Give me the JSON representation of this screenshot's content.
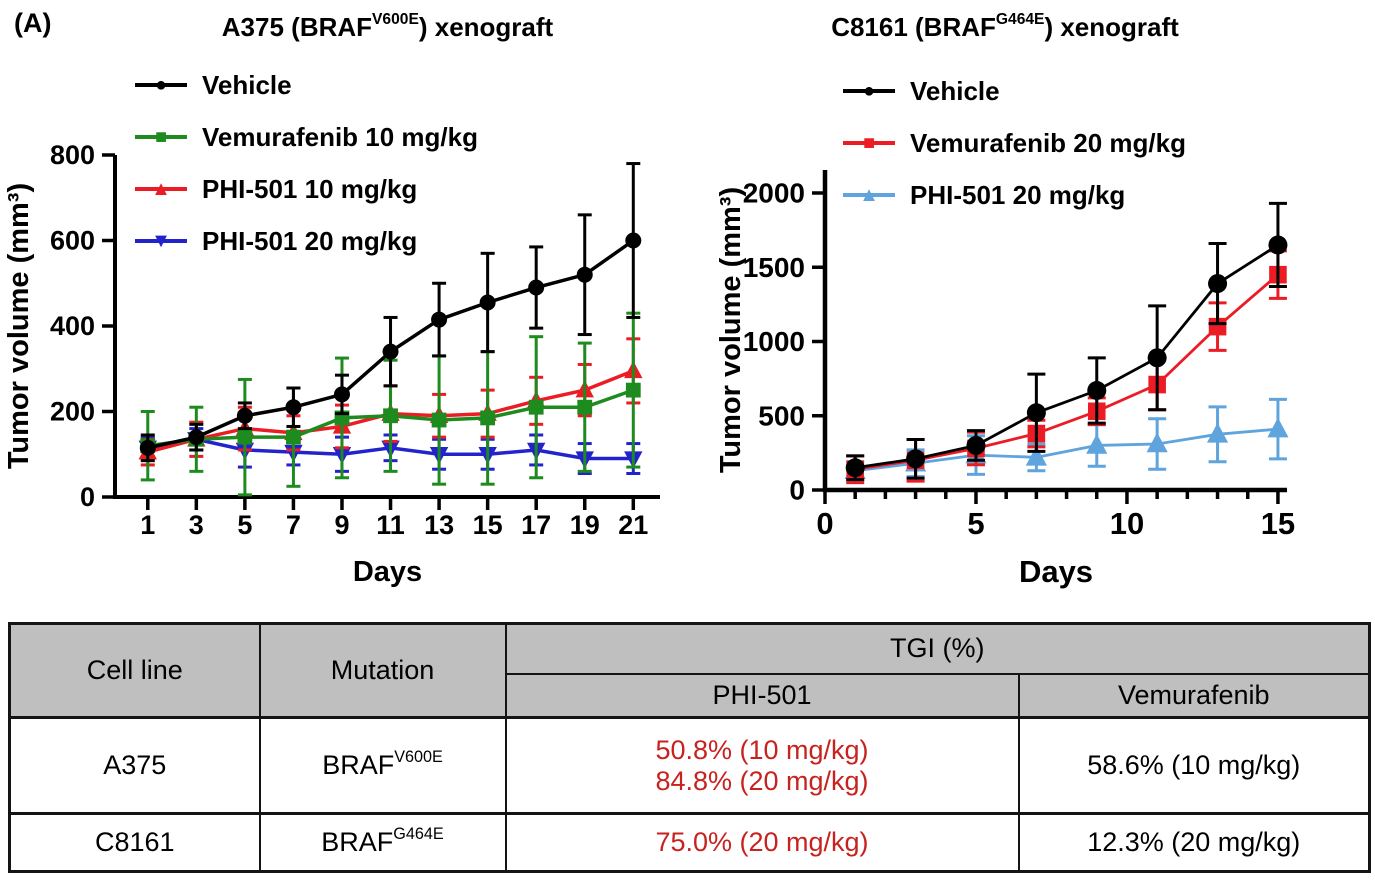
{
  "panel_label": "(A)",
  "chart_data": [
    {
      "type": "line",
      "title": {
        "pre": "A375 (BRAF",
        "sup": "V600E",
        "post": ") xenograft"
      },
      "xlabel": "Days",
      "ylabel": "Tumor volume (mm³)",
      "xlim": [
        -0.35,
        22.1
      ],
      "ylim": [
        0,
        800
      ],
      "x_ticks": [
        1,
        3,
        5,
        7,
        9,
        11,
        13,
        15,
        17,
        19,
        21
      ],
      "y_ticks": [
        0,
        200,
        400,
        600,
        800
      ],
      "grid": "off",
      "legend_position": "top-left",
      "x": [
        1,
        3,
        5,
        7,
        9,
        11,
        13,
        15,
        17,
        19,
        21
      ],
      "series": [
        {
          "name": "Vehicle",
          "marker": "circle",
          "color": "#000000",
          "values": [
            115,
            140,
            190,
            210,
            240,
            340,
            415,
            455,
            490,
            520,
            600
          ],
          "errors": [
            30,
            30,
            30,
            45,
            45,
            80,
            85,
            115,
            95,
            140,
            180
          ]
        },
        {
          "name": "Vemurafenib 10 mg/kg",
          "marker": "square",
          "color": "#1E8B1E",
          "values": [
            120,
            135,
            140,
            140,
            185,
            190,
            180,
            185,
            210,
            210,
            250
          ],
          "errors": [
            80,
            75,
            135,
            115,
            140,
            130,
            150,
            155,
            165,
            150,
            180
          ]
        },
        {
          "name": "PHI-501 10 mg/kg",
          "marker": "triangle-up",
          "color": "#EC1C24",
          "values": [
            105,
            135,
            160,
            150,
            165,
            195,
            190,
            195,
            225,
            250,
            295
          ],
          "errors": [
            30,
            40,
            50,
            40,
            50,
            65,
            50,
            55,
            55,
            60,
            75
          ]
        },
        {
          "name": "PHI-501 20 mg/kg",
          "marker": "triangle-down",
          "color": "#2323CC",
          "values": [
            115,
            135,
            110,
            105,
            100,
            115,
            100,
            100,
            110,
            90,
            90
          ],
          "errors": [
            25,
            25,
            40,
            30,
            40,
            30,
            35,
            35,
            35,
            35,
            35
          ]
        }
      ]
    },
    {
      "type": "line",
      "title": {
        "pre": "C8161 (BRAF",
        "sup": "G464E",
        "post": ") xenograft"
      },
      "xlabel": "Days",
      "ylabel": "Tumor volume (mm³)",
      "xlim": [
        0,
        15.3
      ],
      "ylim": [
        0,
        2000
      ],
      "x_ticks": [
        0,
        5,
        10,
        15
      ],
      "x_minor_step": 1,
      "y_ticks": [
        0,
        500,
        1000,
        1500,
        2000
      ],
      "grid": "off",
      "legend_position": "top-left",
      "x": [
        1,
        3,
        5,
        7,
        9,
        11,
        13,
        15
      ],
      "series": [
        {
          "name": "Vehicle",
          "marker": "circle",
          "color": "#000000",
          "values": [
            150,
            210,
            300,
            520,
            670,
            890,
            1390,
            1650
          ],
          "errors": [
            80,
            130,
            100,
            260,
            220,
            350,
            270,
            280
          ]
        },
        {
          "name": "Vemurafenib 20 mg/kg",
          "marker": "square",
          "color": "#EC1C24",
          "values": [
            140,
            200,
            280,
            380,
            530,
            710,
            1100,
            1450
          ],
          "errors": [
            90,
            140,
            110,
            90,
            90,
            170,
            160,
            160
          ]
        },
        {
          "name": "PHI-501 20 mg/kg",
          "marker": "triangle-up",
          "color": "#5FA4DC",
          "values": [
            130,
            180,
            235,
            220,
            300,
            310,
            375,
            410
          ],
          "errors": [
            60,
            90,
            130,
            90,
            140,
            170,
            185,
            200
          ]
        }
      ]
    }
  ],
  "table": {
    "header_bg": "#BFBFBF",
    "red_text_color": "#C8221F",
    "headers": {
      "cell_line": "Cell line",
      "mutation": "Mutation",
      "tgi": "TGI (%)",
      "phi": "PHI-501",
      "vem": "Vemurafenib"
    },
    "rows": [
      {
        "cell_line": "A375",
        "mutation": {
          "pre": "BRAF",
          "sup": "V600E"
        },
        "phi": [
          "50.8% (10 mg/kg)",
          "84.8% (20 mg/kg)"
        ],
        "vem": "58.6% (10 mg/kg)"
      },
      {
        "cell_line": "C8161",
        "mutation": {
          "pre": "BRAF",
          "sup": "G464E"
        },
        "phi": [
          "75.0% (20 mg/kg)"
        ],
        "vem": "12.3% (20 mg/kg)"
      }
    ]
  }
}
